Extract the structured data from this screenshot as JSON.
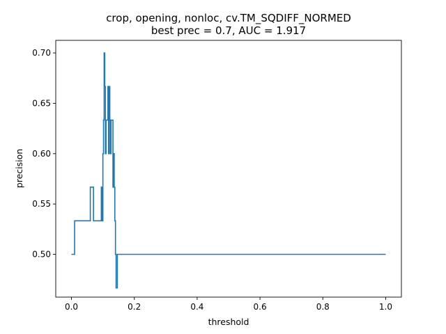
{
  "chart_data": {
    "type": "line",
    "title": "crop, opening, nonloc, cv.TM_SQDIFF_NORMED",
    "subtitle": "best prec = 0.7, AUC = 1.917",
    "xlabel": "threshold",
    "ylabel": "precision",
    "xlim": [
      -0.05,
      1.05
    ],
    "ylim": [
      0.4575,
      0.7125
    ],
    "x_ticks": [
      0.0,
      0.2,
      0.4,
      0.6,
      0.8,
      1.0
    ],
    "x_tick_labels": [
      "0.0",
      "0.2",
      "0.4",
      "0.6",
      "0.8",
      "1.0"
    ],
    "y_ticks": [
      0.5,
      0.55,
      0.6,
      0.65,
      0.7
    ],
    "y_tick_labels": [
      "0.50",
      "0.55",
      "0.60",
      "0.65",
      "0.70"
    ],
    "grid": false,
    "colors": {
      "line": "#1f77b4"
    },
    "series": [
      {
        "x": [
          0.0,
          0.01,
          0.01,
          0.06,
          0.06,
          0.07,
          0.07,
          0.095,
          0.095,
          0.097,
          0.097,
          0.1,
          0.1,
          0.102,
          0.102,
          0.104,
          0.104,
          0.106,
          0.106,
          0.108,
          0.108,
          0.11,
          0.11,
          0.116,
          0.116,
          0.118,
          0.118,
          0.12,
          0.12,
          0.122,
          0.122,
          0.124,
          0.124,
          0.126,
          0.126,
          0.132,
          0.132,
          0.134,
          0.134,
          0.136,
          0.136,
          0.138,
          0.138,
          0.14,
          0.14,
          0.142,
          0.142,
          0.146,
          0.146,
          1.0
        ],
        "y": [
          0.5,
          0.5,
          0.5333,
          0.5333,
          0.5667,
          0.5667,
          0.5333,
          0.5333,
          0.5667,
          0.5667,
          0.5333,
          0.5333,
          0.6,
          0.6,
          0.6333,
          0.6333,
          0.7,
          0.7,
          0.6667,
          0.6667,
          0.6,
          0.6,
          0.6333,
          0.6333,
          0.6667,
          0.6667,
          0.6,
          0.6,
          0.6667,
          0.6667,
          0.6333,
          0.6333,
          0.6,
          0.6,
          0.6333,
          0.6333,
          0.5667,
          0.5667,
          0.6,
          0.6,
          0.5667,
          0.5667,
          0.5333,
          0.5333,
          0.5,
          0.5,
          0.4667,
          0.4667,
          0.5,
          0.5
        ]
      }
    ]
  }
}
